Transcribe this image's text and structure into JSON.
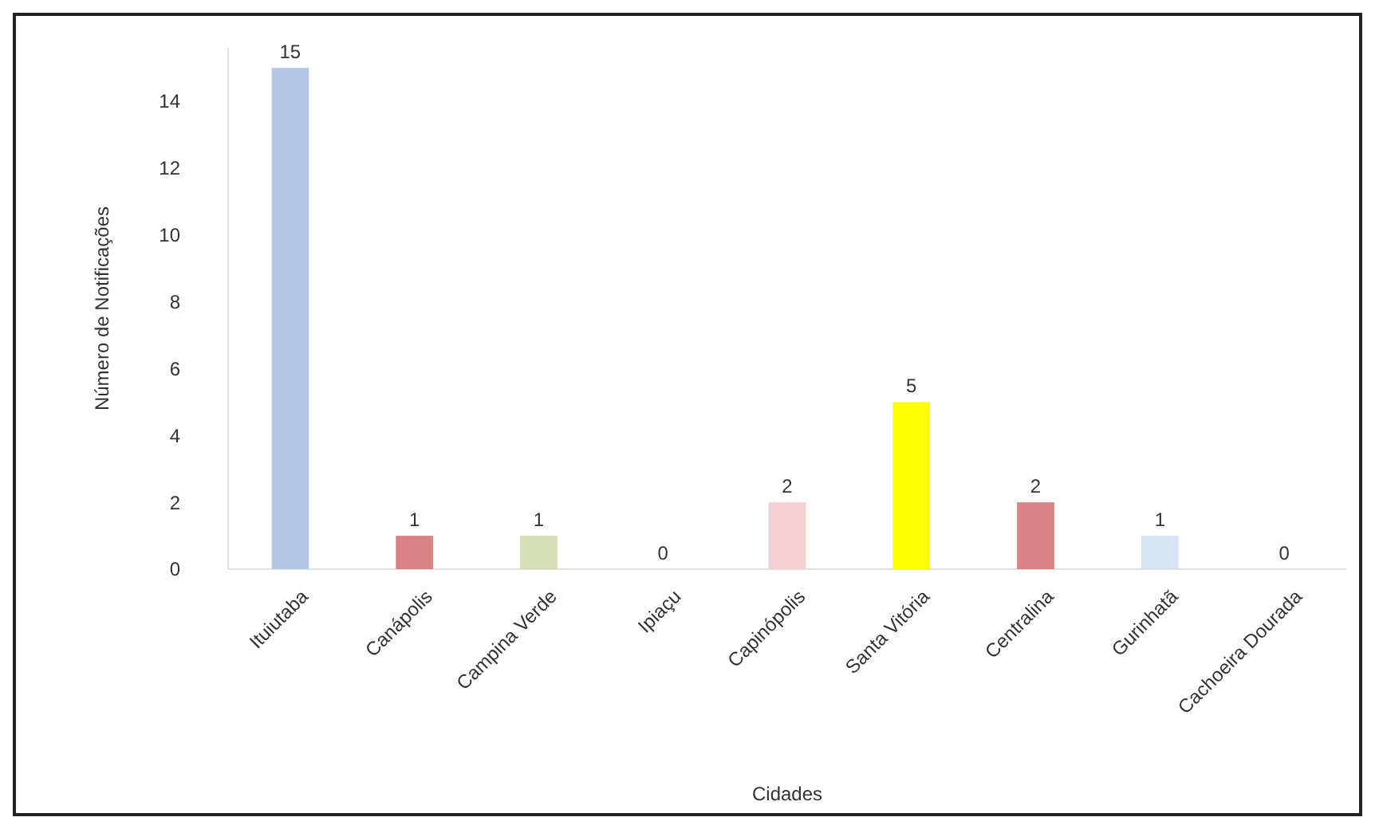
{
  "chart_data": {
    "type": "bar",
    "xlabel": "Cidades",
    "ylabel": "Número de Notificações",
    "categories": [
      "Ituiutaba",
      "Canápolis",
      "Campina Verde",
      "Ipiaçu",
      "Capinópolis",
      "Santa Vitória",
      "Centralina",
      "Gurinhatã",
      "Cachoeira Dourada"
    ],
    "values": [
      15,
      1,
      1,
      0,
      2,
      5,
      2,
      1,
      0
    ],
    "colors": [
      "#b4c7e7",
      "#d98484",
      "#d6e0b8",
      "#e0e0e0",
      "#f2d0d4",
      "#ffff00",
      "#d98484",
      "#d6e3f2",
      "#e0e0e0"
    ],
    "ylim": [
      0,
      15.6
    ],
    "yticks": [
      0,
      2,
      4,
      6,
      8,
      10,
      12,
      14
    ],
    "grid": false,
    "data_labels": true
  }
}
